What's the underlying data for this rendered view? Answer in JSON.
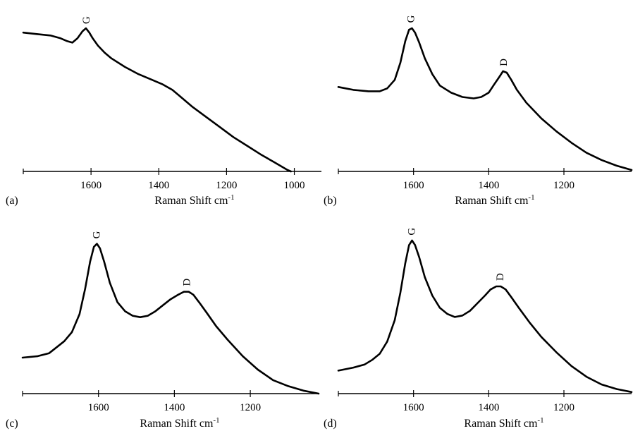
{
  "chart_data": [
    {
      "type": "line",
      "panel_label": "(a)",
      "xlabel": "Raman Shift cm",
      "xlabel_sup": "-1",
      "x_reversed": true,
      "xlim": [
        1800,
        920
      ],
      "ylim": [
        0,
        1.05
      ],
      "x_ticks": [
        1600,
        1400,
        1200,
        1000
      ],
      "x_tick_labels": [
        "1600",
        "1400",
        "1200",
        "1000"
      ],
      "peak_labels": [
        {
          "text": "G",
          "x": 1612
        }
      ],
      "series": [
        {
          "x": [
            1800,
            1760,
            1720,
            1690,
            1670,
            1655,
            1640,
            1625,
            1615,
            1605,
            1595,
            1580,
            1560,
            1540,
            1500,
            1460,
            1420,
            1390,
            1360,
            1330,
            1300,
            1260,
            1220,
            1180,
            1140,
            1100,
            1060,
            1020,
            1010
          ],
          "values": [
            0.97,
            0.96,
            0.95,
            0.93,
            0.91,
            0.9,
            0.93,
            0.98,
            1.0,
            0.97,
            0.93,
            0.88,
            0.83,
            0.79,
            0.73,
            0.68,
            0.64,
            0.61,
            0.57,
            0.51,
            0.45,
            0.38,
            0.31,
            0.24,
            0.18,
            0.12,
            0.065,
            0.01,
            0.0
          ]
        }
      ]
    },
    {
      "type": "line",
      "panel_label": "(b)",
      "xlabel": "Raman Shift cm",
      "xlabel_sup": "-1",
      "x_reversed": true,
      "xlim": [
        1800,
        1020
      ],
      "ylim": [
        0,
        1.05
      ],
      "x_ticks": [
        1600,
        1400,
        1200
      ],
      "x_tick_labels": [
        "1600",
        "1400",
        "1200"
      ],
      "peak_labels": [
        {
          "text": "G",
          "x": 1605
        },
        {
          "text": "D",
          "x": 1358
        }
      ],
      "series": [
        {
          "x": [
            1800,
            1760,
            1720,
            1690,
            1670,
            1650,
            1635,
            1622,
            1612,
            1604,
            1596,
            1585,
            1570,
            1550,
            1530,
            1500,
            1470,
            1440,
            1420,
            1400,
            1385,
            1372,
            1362,
            1352,
            1340,
            1325,
            1300,
            1260,
            1220,
            1180,
            1140,
            1100,
            1060,
            1020
          ],
          "values": [
            0.59,
            0.57,
            0.56,
            0.56,
            0.58,
            0.64,
            0.76,
            0.91,
            0.99,
            1.0,
            0.97,
            0.9,
            0.79,
            0.68,
            0.6,
            0.55,
            0.52,
            0.51,
            0.52,
            0.55,
            0.61,
            0.66,
            0.7,
            0.69,
            0.64,
            0.57,
            0.48,
            0.37,
            0.28,
            0.2,
            0.13,
            0.08,
            0.04,
            0.01
          ]
        }
      ]
    },
    {
      "type": "line",
      "panel_label": "(c)",
      "xlabel": "Raman Shift cm",
      "xlabel_sup": "-1",
      "x_reversed": true,
      "xlim": [
        1800,
        1020
      ],
      "ylim": [
        0,
        1.05
      ],
      "x_ticks": [
        1600,
        1400,
        1200
      ],
      "x_tick_labels": [
        "1600",
        "1400",
        "1200"
      ],
      "peak_labels": [
        {
          "text": "G",
          "x": 1603
        },
        {
          "text": "D",
          "x": 1365
        }
      ],
      "series": [
        {
          "x": [
            1800,
            1760,
            1730,
            1710,
            1690,
            1670,
            1650,
            1635,
            1622,
            1612,
            1604,
            1596,
            1585,
            1570,
            1550,
            1530,
            1510,
            1490,
            1470,
            1450,
            1430,
            1410,
            1390,
            1375,
            1362,
            1350,
            1335,
            1315,
            1290,
            1260,
            1220,
            1180,
            1140,
            1100,
            1060,
            1020
          ],
          "values": [
            0.24,
            0.25,
            0.27,
            0.31,
            0.35,
            0.41,
            0.53,
            0.7,
            0.88,
            0.98,
            1.0,
            0.97,
            0.88,
            0.74,
            0.61,
            0.55,
            0.52,
            0.51,
            0.52,
            0.55,
            0.59,
            0.63,
            0.66,
            0.68,
            0.68,
            0.66,
            0.61,
            0.54,
            0.45,
            0.36,
            0.25,
            0.16,
            0.09,
            0.05,
            0.02,
            0.0
          ]
        }
      ]
    },
    {
      "type": "line",
      "panel_label": "(d)",
      "xlabel": "Raman Shift cm",
      "xlabel_sup": "-1",
      "x_reversed": true,
      "xlim": [
        1800,
        1020
      ],
      "ylim": [
        0,
        1.05
      ],
      "x_ticks": [
        1600,
        1400,
        1200
      ],
      "x_tick_labels": [
        "1600",
        "1400",
        "1200"
      ],
      "peak_labels": [
        {
          "text": "G",
          "x": 1603
        },
        {
          "text": "D",
          "x": 1368
        }
      ],
      "series": [
        {
          "x": [
            1800,
            1760,
            1730,
            1710,
            1690,
            1670,
            1650,
            1635,
            1622,
            1612,
            1604,
            1596,
            1585,
            1570,
            1550,
            1530,
            1510,
            1490,
            1470,
            1450,
            1430,
            1410,
            1395,
            1380,
            1368,
            1355,
            1340,
            1320,
            1290,
            1260,
            1220,
            1180,
            1140,
            1100,
            1060,
            1020
          ],
          "values": [
            0.15,
            0.17,
            0.19,
            0.22,
            0.26,
            0.34,
            0.48,
            0.66,
            0.85,
            0.97,
            1.0,
            0.97,
            0.89,
            0.76,
            0.64,
            0.56,
            0.52,
            0.5,
            0.51,
            0.54,
            0.59,
            0.64,
            0.68,
            0.7,
            0.7,
            0.68,
            0.63,
            0.56,
            0.46,
            0.37,
            0.27,
            0.18,
            0.11,
            0.06,
            0.03,
            0.01
          ]
        }
      ]
    }
  ]
}
